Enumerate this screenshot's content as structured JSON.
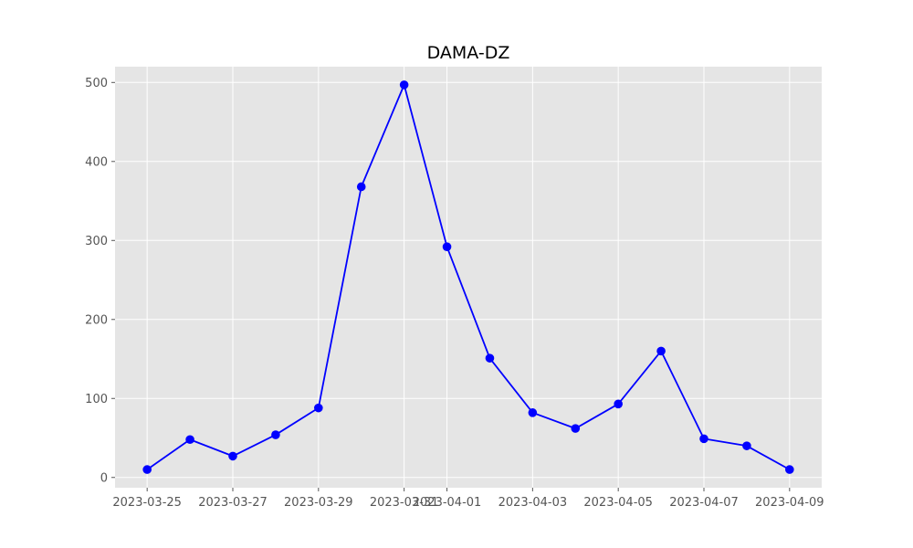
{
  "chart_data": {
    "type": "line",
    "title": "DAMA-DZ",
    "xlabel": "",
    "ylabel": "",
    "x": [
      "2023-03-25",
      "2023-03-26",
      "2023-03-27",
      "2023-03-28",
      "2023-03-29",
      "2023-03-30",
      "2023-03-31",
      "2023-04-01",
      "2023-04-02",
      "2023-04-03",
      "2023-04-04",
      "2023-04-05",
      "2023-04-06",
      "2023-04-07",
      "2023-04-08",
      "2023-04-09"
    ],
    "series": [
      {
        "values": [
          10,
          48,
          27,
          54,
          88,
          368,
          497,
          292,
          151,
          82,
          62,
          93,
          160,
          49,
          40,
          10
        ]
      }
    ],
    "x_ticks": [
      "2023-03-25",
      "2023-03-27",
      "2023-03-29",
      "2023-03-31",
      "2023-04-01",
      "2023-04-03",
      "2023-04-05",
      "2023-04-07",
      "2023-04-09"
    ],
    "y_ticks": [
      0,
      100,
      200,
      300,
      400,
      500
    ],
    "ylim": [
      -13,
      520
    ],
    "xlim": [
      "2023-03-24T06:00",
      "2023-04-09T18:00"
    ],
    "grid": true,
    "legend": "none",
    "colors": {
      "line": "#0000ff",
      "marker": "#0000ff",
      "plot_background": "#e5e5e5",
      "grid": "#ffffff",
      "tick_text": "#555555"
    }
  }
}
